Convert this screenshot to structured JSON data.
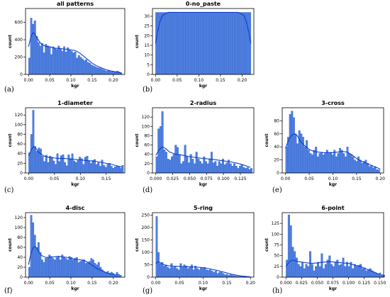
{
  "chart_data": [
    {
      "type": "bar",
      "title": "all patterns",
      "panel_label": "(a)",
      "xlabel": "kgr",
      "ylabel": "count",
      "xlim": [
        -0.007,
        0.227
      ],
      "ylim": [
        0,
        760
      ],
      "xticks": [
        0.0,
        0.05,
        0.1,
        0.15,
        0.2
      ],
      "xtick_labels": [
        "0.00",
        "0.05",
        "0.10",
        "0.15",
        "0.20"
      ],
      "yticks": [
        0,
        200,
        400,
        600
      ],
      "ytick_labels": [
        "0",
        "200",
        "400",
        "600"
      ],
      "bin_start": 0.0,
      "bin_width": 0.00432,
      "values": [
        190,
        650,
        580,
        620,
        440,
        370,
        330,
        360,
        250,
        350,
        330,
        320,
        230,
        320,
        300,
        290,
        330,
        300,
        270,
        320,
        260,
        310,
        280,
        270,
        250,
        260,
        190,
        220,
        200,
        180,
        160,
        170,
        140,
        130,
        110,
        100,
        90,
        80,
        75,
        70,
        60,
        50,
        40,
        50,
        40,
        30,
        30,
        25,
        40,
        30,
        20
      ],
      "kde_x": [
        0.0,
        0.005,
        0.01,
        0.015,
        0.02,
        0.03,
        0.04,
        0.05,
        0.06,
        0.07,
        0.08,
        0.09,
        0.1,
        0.11,
        0.12,
        0.13,
        0.14,
        0.15,
        0.16,
        0.17,
        0.18,
        0.19,
        0.2,
        0.21,
        0.22
      ],
      "kde_y": [
        320,
        420,
        480,
        470,
        420,
        350,
        325,
        318,
        305,
        300,
        295,
        290,
        283,
        275,
        250,
        210,
        170,
        130,
        100,
        80,
        60,
        45,
        35,
        25,
        15
      ]
    },
    {
      "type": "bar",
      "title": "0-no_paste",
      "panel_label": "(b)",
      "xlabel": "kgr",
      "ylabel": "count",
      "xlim": [
        -0.007,
        0.227
      ],
      "ylim": [
        0,
        34
      ],
      "xticks": [
        0.0,
        0.05,
        0.1,
        0.15,
        0.2
      ],
      "xtick_labels": [
        "0.00",
        "0.05",
        "0.10",
        "0.15",
        "0.20"
      ],
      "yticks": [
        0,
        5,
        10,
        15,
        20,
        25,
        30
      ],
      "ytick_labels": [
        "0",
        "5",
        "10",
        "15",
        "20",
        "25",
        "30"
      ],
      "bin_start": 0.0,
      "bin_width": 0.00432,
      "values": [
        32,
        32,
        32,
        32,
        32,
        32,
        32,
        32,
        32,
        32,
        32,
        32,
        32,
        32,
        32,
        32,
        32,
        32,
        32,
        32,
        32,
        32,
        32,
        32,
        32,
        32,
        32,
        32,
        32,
        32,
        32,
        32,
        32,
        32,
        32,
        32,
        32,
        32,
        32,
        32,
        32,
        32,
        32,
        32,
        32,
        32,
        32,
        32,
        32,
        32,
        32
      ],
      "kde_x": [
        0.0,
        0.005,
        0.01,
        0.015,
        0.02,
        0.03,
        0.04,
        0.06,
        0.08,
        0.11,
        0.14,
        0.17,
        0.19,
        0.2,
        0.205,
        0.21,
        0.215,
        0.22
      ],
      "kde_y": [
        16,
        22,
        27,
        30,
        31,
        32,
        32,
        32,
        32,
        32,
        32,
        32,
        32,
        31,
        30,
        27,
        22,
        16
      ]
    },
    {
      "type": "bar",
      "title": "1-diameter",
      "panel_label": "(c)",
      "xlabel": "kgr",
      "ylabel": "count",
      "xlim": [
        -0.006,
        0.186
      ],
      "ylim": [
        0,
        135
      ],
      "xticks": [
        0.0,
        0.05,
        0.1,
        0.15
      ],
      "xtick_labels": [
        "0.00",
        "0.05",
        "0.10",
        "0.15"
      ],
      "yticks": [
        0,
        20,
        40,
        60,
        80,
        100,
        120
      ],
      "ytick_labels": [
        "0",
        "20",
        "40",
        "60",
        "80",
        "100",
        "120"
      ],
      "bin_start": 0.0,
      "bin_width": 0.0036,
      "values": [
        42,
        80,
        130,
        55,
        45,
        52,
        50,
        35,
        24,
        37,
        22,
        35,
        33,
        25,
        18,
        40,
        24,
        36,
        38,
        22,
        15,
        38,
        30,
        40,
        25,
        22,
        26,
        33,
        30,
        18,
        33,
        35,
        25,
        20,
        26,
        28,
        18,
        22,
        14,
        27,
        16,
        12,
        18,
        20,
        14,
        10,
        13,
        15,
        14,
        10,
        16
      ],
      "kde_x": [
        0.0,
        0.005,
        0.01,
        0.015,
        0.02,
        0.03,
        0.04,
        0.05,
        0.06,
        0.07,
        0.08,
        0.09,
        0.1,
        0.11,
        0.12,
        0.13,
        0.14,
        0.15,
        0.16,
        0.17,
        0.18
      ],
      "kde_y": [
        35,
        48,
        55,
        50,
        42,
        35,
        32,
        31,
        30,
        30,
        29,
        28,
        27,
        26,
        25,
        24,
        22,
        20,
        18,
        15,
        12
      ]
    },
    {
      "type": "bar",
      "title": "2-radius",
      "panel_label": "(d)",
      "xlabel": "kgr",
      "ylabel": "count",
      "xlim": [
        -0.005,
        0.145
      ],
      "ylim": [
        0,
        140
      ],
      "xticks": [
        0.0,
        0.025,
        0.05,
        0.075,
        0.1,
        0.125
      ],
      "xtick_labels": [
        "0.000",
        "0.025",
        "0.050",
        "0.075",
        "0.100",
        "0.125"
      ],
      "yticks": [
        0,
        20,
        40,
        60,
        80,
        100,
        120
      ],
      "ytick_labels": [
        "0",
        "20",
        "40",
        "60",
        "80",
        "100",
        "120"
      ],
      "bin_start": 0.0,
      "bin_width": 0.0028,
      "values": [
        35,
        95,
        100,
        132,
        50,
        45,
        30,
        28,
        35,
        40,
        60,
        55,
        40,
        20,
        25,
        60,
        35,
        22,
        40,
        30,
        20,
        45,
        30,
        25,
        20,
        35,
        25,
        20,
        30,
        45,
        22,
        25,
        15,
        25,
        20,
        30,
        18,
        22,
        28,
        20,
        15,
        20,
        15,
        10,
        15,
        18,
        12,
        10,
        12,
        8,
        10
      ],
      "kde_x": [
        0.0,
        0.005,
        0.01,
        0.015,
        0.02,
        0.03,
        0.04,
        0.05,
        0.06,
        0.07,
        0.08,
        0.09,
        0.1,
        0.11,
        0.12,
        0.13,
        0.14
      ],
      "kde_y": [
        38,
        50,
        56,
        52,
        45,
        40,
        38,
        35,
        33,
        31,
        30,
        28,
        26,
        24,
        21,
        17,
        12
      ]
    },
    {
      "type": "bar",
      "title": "3-cross",
      "panel_label": "(e)",
      "xlabel": "kgr",
      "ylabel": "count",
      "xlim": [
        -0.007,
        0.207
      ],
      "ylim": [
        0,
        100
      ],
      "xticks": [
        0.0,
        0.05,
        0.1,
        0.15,
        0.2
      ],
      "xtick_labels": [
        "0.00",
        "0.05",
        "0.10",
        "0.15",
        "0.20"
      ],
      "yticks": [
        0,
        20,
        40,
        60,
        80
      ],
      "ytick_labels": [
        "0",
        "20",
        "40",
        "60",
        "80"
      ],
      "bin_start": 0.0,
      "bin_width": 0.0039,
      "values": [
        40,
        55,
        90,
        95,
        85,
        60,
        45,
        65,
        60,
        55,
        40,
        50,
        35,
        30,
        28,
        35,
        40,
        25,
        30,
        32,
        28,
        30,
        35,
        30,
        32,
        28,
        35,
        25,
        30,
        38,
        35,
        30,
        25,
        40,
        30,
        28,
        25,
        20,
        18,
        25,
        20,
        15,
        18,
        20,
        15,
        10,
        12,
        8,
        10,
        5,
        5
      ],
      "kde_x": [
        0.0,
        0.005,
        0.01,
        0.015,
        0.02,
        0.025,
        0.03,
        0.04,
        0.05,
        0.06,
        0.07,
        0.08,
        0.09,
        0.1,
        0.11,
        0.12,
        0.13,
        0.14,
        0.15,
        0.16,
        0.17,
        0.18,
        0.19,
        0.2
      ],
      "kde_y": [
        38,
        48,
        55,
        59,
        60,
        57,
        50,
        42,
        36,
        33,
        32,
        31,
        31,
        31,
        32,
        33,
        32,
        28,
        22,
        18,
        15,
        12,
        9,
        6
      ]
    },
    {
      "type": "bar",
      "title": "4-disc",
      "panel_label": "(f)",
      "xlabel": "kgr",
      "ylabel": "count",
      "xlim": [
        -0.007,
        0.227
      ],
      "ylim": [
        0,
        130
      ],
      "xticks": [
        0.0,
        0.05,
        0.1,
        0.15,
        0.2
      ],
      "xtick_labels": [
        "0.00",
        "0.05",
        "0.10",
        "0.15",
        "0.20"
      ],
      "yticks": [
        0,
        20,
        40,
        60,
        80,
        100,
        120
      ],
      "ytick_labels": [
        "0",
        "20",
        "40",
        "60",
        "80",
        "100",
        "120"
      ],
      "bin_start": 0.0,
      "bin_width": 0.0043,
      "values": [
        20,
        125,
        110,
        85,
        60,
        70,
        50,
        35,
        30,
        38,
        40,
        45,
        42,
        38,
        35,
        40,
        42,
        35,
        45,
        40,
        38,
        35,
        42,
        40,
        35,
        38,
        40,
        30,
        32,
        35,
        35,
        28,
        30,
        32,
        38,
        35,
        28,
        25,
        30,
        20,
        15,
        12,
        10,
        12,
        8,
        10,
        8,
        5,
        10,
        6,
        4
      ],
      "kde_x": [
        0.0,
        0.005,
        0.01,
        0.015,
        0.02,
        0.025,
        0.03,
        0.04,
        0.05,
        0.06,
        0.07,
        0.08,
        0.09,
        0.1,
        0.11,
        0.12,
        0.13,
        0.14,
        0.15,
        0.16,
        0.17,
        0.18,
        0.19,
        0.2,
        0.21
      ],
      "kde_y": [
        25,
        45,
        58,
        62,
        58,
        50,
        44,
        40,
        40,
        41,
        42,
        41,
        40,
        38,
        36,
        35,
        34,
        30,
        24,
        18,
        14,
        10,
        7,
        5,
        4
      ]
    },
    {
      "type": "bar",
      "title": "5-ring",
      "panel_label": "(g)",
      "xlabel": "kgr",
      "ylabel": "count",
      "xlim": [
        -0.007,
        0.207
      ],
      "ylim": [
        0,
        260
      ],
      "xticks": [
        0.0,
        0.05,
        0.1,
        0.15,
        0.2
      ],
      "xtick_labels": [
        "0.00",
        "0.05",
        "0.10",
        "0.15",
        "0.20"
      ],
      "yticks": [
        0,
        50,
        100,
        150,
        200,
        250
      ],
      "ytick_labels": [
        "0",
        "50",
        "100",
        "150",
        "200",
        "250"
      ],
      "bin_start": 0.0,
      "bin_width": 0.0039,
      "values": [
        245,
        100,
        55,
        60,
        45,
        50,
        40,
        35,
        55,
        40,
        45,
        35,
        30,
        55,
        40,
        50,
        45,
        35,
        40,
        50,
        30,
        45,
        35,
        30,
        38,
        35,
        40,
        30,
        28,
        30,
        25,
        20,
        25,
        15,
        20,
        20,
        15,
        10,
        12,
        8,
        10,
        8,
        6,
        5,
        4,
        4,
        3,
        2,
        2,
        1,
        1
      ],
      "kde_x": [
        0.0,
        0.005,
        0.01,
        0.015,
        0.02,
        0.03,
        0.04,
        0.05,
        0.06,
        0.07,
        0.08,
        0.09,
        0.1,
        0.11,
        0.12,
        0.13,
        0.14,
        0.15,
        0.16,
        0.17,
        0.18,
        0.19,
        0.2
      ],
      "kde_y": [
        55,
        62,
        58,
        52,
        48,
        45,
        44,
        43,
        43,
        42,
        41,
        40,
        38,
        35,
        31,
        27,
        22,
        17,
        12,
        8,
        5,
        3,
        1
      ]
    },
    {
      "type": "bar",
      "title": "6-point",
      "panel_label": "(h)",
      "xlabel": "kgr",
      "ylabel": "count",
      "xlim": [
        -0.006,
        0.156
      ],
      "ylim": [
        0,
        150
      ],
      "xticks": [
        0.0,
        0.025,
        0.05,
        0.075,
        0.1,
        0.125,
        0.15
      ],
      "xtick_labels": [
        "0.000",
        "0.025",
        "0.050",
        "0.075",
        "0.100",
        "0.125",
        "0.150"
      ],
      "yticks": [
        0,
        25,
        50,
        75,
        100,
        125
      ],
      "ytick_labels": [
        "0",
        "25",
        "50",
        "75",
        "100",
        "125"
      ],
      "bin_start": 0.0,
      "bin_width": 0.0031,
      "values": [
        40,
        145,
        120,
        70,
        60,
        45,
        30,
        25,
        35,
        20,
        30,
        25,
        60,
        30,
        15,
        25,
        35,
        25,
        55,
        20,
        30,
        40,
        50,
        30,
        25,
        35,
        40,
        28,
        30,
        45,
        25,
        35,
        25,
        35,
        20,
        30,
        25,
        28,
        30,
        20,
        22,
        15,
        18,
        20,
        15,
        12,
        10,
        8,
        10,
        6,
        5
      ],
      "kde_x": [
        0.0,
        0.005,
        0.01,
        0.015,
        0.02,
        0.025,
        0.03,
        0.04,
        0.05,
        0.06,
        0.07,
        0.08,
        0.09,
        0.1,
        0.11,
        0.12,
        0.13,
        0.14,
        0.15
      ],
      "kde_y": [
        25,
        35,
        40,
        38,
        36,
        35,
        34,
        32,
        33,
        35,
        36,
        35,
        33,
        32,
        28,
        24,
        18,
        12,
        6
      ]
    }
  ]
}
